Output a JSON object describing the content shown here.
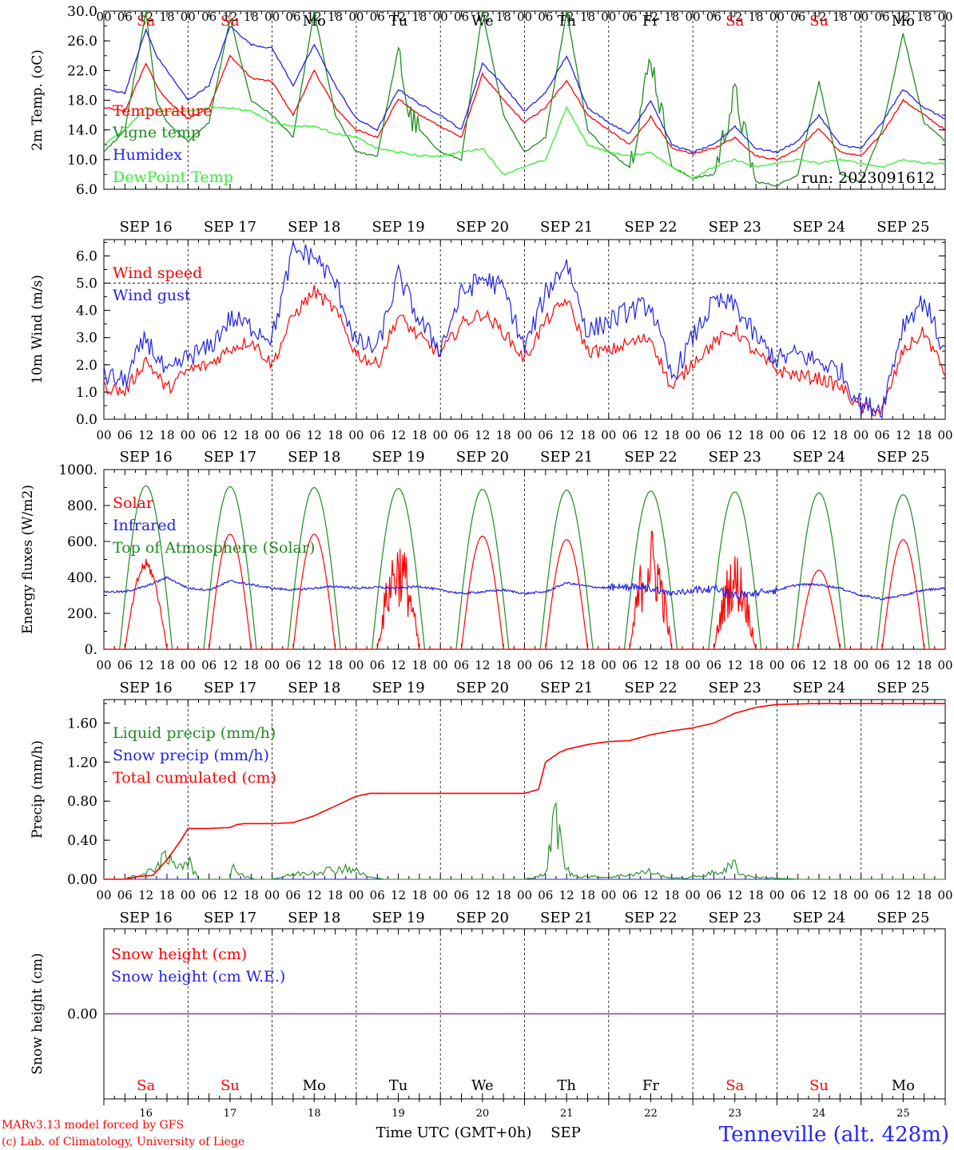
{
  "dates": [
    "SEP 16",
    "SEP 17",
    "SEP 18",
    "SEP 19",
    "SEP 20",
    "SEP 21",
    "SEP 22",
    "SEP 23",
    "SEP 24",
    "SEP 25"
  ],
  "hour_labels": [
    "00",
    "06",
    "12",
    "18"
  ],
  "hour_end": "00",
  "days": [
    {
      "abbr": "Sa",
      "weekend": true
    },
    {
      "abbr": "Su",
      "weekend": true
    },
    {
      "abbr": "Mo",
      "weekend": false
    },
    {
      "abbr": "Tu",
      "weekend": false
    },
    {
      "abbr": "We",
      "weekend": false
    },
    {
      "abbr": "Th",
      "weekend": false
    },
    {
      "abbr": "Fr",
      "weekend": false
    },
    {
      "abbr": "Sa",
      "weekend": true
    },
    {
      "abbr": "Su",
      "weekend": true
    },
    {
      "abbr": "Mo",
      "weekend": false
    }
  ],
  "day_numbers": [
    "16",
    "17",
    "18",
    "19",
    "20",
    "21",
    "22",
    "23",
    "24",
    "25"
  ],
  "colors": {
    "red": "#ff0000",
    "green": "#1f8c1f",
    "blue": "#2323e6",
    "lightgreen": "#33ee33",
    "purple": "#8b3a9c"
  },
  "footer": {
    "model": "MARv3.13 model forced by GFS",
    "credit": "(c) Lab. of Climatology, University of Liege",
    "xtitle": "Time UTC (GMT+0h)",
    "month": "SEP",
    "location": "Tenneville (alt. 428m)"
  },
  "chart_data": [
    {
      "type": "line",
      "ylabel": "2m Temp. (oC)",
      "yticks": [
        "6.0",
        "10.0",
        "14.0",
        "18.0",
        "22.0",
        "26.0",
        "30.0"
      ],
      "ylim": [
        6,
        30
      ],
      "annotation": "run: 2023091612",
      "x_unit": "hours since SEP 16 00 UTC",
      "series": [
        {
          "name": "Temperature",
          "color": "red",
          "x": [
            0,
            6,
            12,
            15,
            18,
            24,
            30,
            36,
            42,
            48,
            54,
            60,
            66,
            72,
            78,
            84,
            90,
            96,
            102,
            108,
            114,
            120,
            126,
            132,
            138,
            144,
            150,
            156,
            162,
            168,
            174,
            180,
            186,
            192,
            198,
            204,
            210,
            216,
            222,
            228,
            234,
            240
          ],
          "y": [
            17,
            16.5,
            23,
            20,
            18,
            15.5,
            17,
            24,
            21,
            20.5,
            16,
            22,
            17,
            14,
            13,
            18.2,
            16,
            14.5,
            13,
            21.5,
            18,
            15,
            17,
            20.7,
            16,
            14,
            12,
            15.8,
            11.5,
            10.8,
            11.5,
            13,
            10.5,
            10,
            11.5,
            14.2,
            11,
            10.5,
            13.5,
            18,
            16,
            14
          ]
        },
        {
          "name": "Vigne temp",
          "color": "green",
          "x": [
            0,
            6,
            12,
            15,
            18,
            24,
            30,
            36,
            42,
            48,
            54,
            60,
            66,
            72,
            78,
            84,
            87,
            90,
            96,
            102,
            108,
            114,
            120,
            126,
            132,
            138,
            144,
            150,
            156,
            162,
            168,
            174,
            180,
            186,
            192,
            198,
            204,
            210,
            216,
            222,
            228,
            234,
            240
          ],
          "y": [
            11,
            14,
            30,
            18,
            15,
            12.5,
            15,
            29,
            18,
            16,
            13,
            30,
            16,
            11,
            10.5,
            25,
            16,
            14,
            11,
            10,
            30,
            16,
            11,
            13,
            30,
            14,
            11,
            9,
            24,
            9,
            7.5,
            8,
            19,
            7,
            6.5,
            8,
            20.5,
            8,
            7,
            14,
            27,
            15,
            12.5
          ]
        },
        {
          "name": "Humidex",
          "color": "blue",
          "x": [
            0,
            6,
            12,
            15,
            18,
            24,
            30,
            36,
            42,
            48,
            54,
            60,
            66,
            72,
            78,
            84,
            90,
            96,
            102,
            108,
            114,
            120,
            126,
            132,
            138,
            144,
            150,
            156,
            162,
            168,
            174,
            180,
            186,
            192,
            198,
            204,
            210,
            216,
            222,
            228,
            234,
            240
          ],
          "y": [
            19.5,
            19,
            27.5,
            24,
            22,
            18,
            20,
            28,
            25.5,
            25,
            20,
            25.5,
            20,
            15.5,
            14,
            19.5,
            17.5,
            16,
            14,
            23,
            20,
            16.5,
            19,
            24,
            17,
            15,
            13.5,
            18,
            12,
            11,
            12,
            14.5,
            11.5,
            11,
            12.5,
            16,
            12,
            11.5,
            15,
            19.5,
            17,
            15.5
          ]
        },
        {
          "name": "DewPoint Temp",
          "color": "lightgreen",
          "x": [
            0,
            6,
            12,
            18,
            24,
            30,
            36,
            42,
            48,
            54,
            60,
            66,
            72,
            78,
            84,
            90,
            96,
            102,
            108,
            114,
            120,
            126,
            132,
            138,
            144,
            150,
            156,
            162,
            168,
            174,
            180,
            186,
            192,
            198,
            204,
            210,
            216,
            222,
            228,
            234,
            240
          ],
          "y": [
            12,
            14,
            17,
            16.5,
            16.5,
            17,
            17,
            16.5,
            15,
            14.5,
            14.5,
            13.5,
            13,
            11.5,
            11,
            10.5,
            10.5,
            11,
            11.5,
            8,
            9,
            10,
            17,
            12,
            11,
            10.5,
            11,
            9,
            7.5,
            9,
            10,
            9,
            9.5,
            10,
            9.5,
            10,
            9.5,
            9,
            10,
            9.5,
            9.5
          ]
        }
      ]
    },
    {
      "type": "line",
      "ylabel": "10m Wind (m/s)",
      "yticks": [
        "0.0",
        "1.0",
        "2.0",
        "3.0",
        "4.0",
        "5.0",
        "6.0"
      ],
      "ylim": [
        0,
        6.6
      ],
      "x_unit": "hours since SEP 16 00 UTC",
      "series": [
        {
          "name": "Wind speed",
          "color": "red",
          "x": [
            0,
            6,
            12,
            18,
            24,
            30,
            36,
            42,
            48,
            54,
            60,
            66,
            72,
            78,
            84,
            90,
            96,
            102,
            108,
            114,
            120,
            126,
            132,
            138,
            144,
            150,
            156,
            162,
            168,
            174,
            180,
            186,
            192,
            198,
            204,
            210,
            216,
            222,
            228,
            234,
            240
          ],
          "y": [
            1.2,
            1,
            2.2,
            1.1,
            1.8,
            2,
            2.6,
            2.9,
            2,
            3.8,
            4.7,
            4,
            2.4,
            2,
            3.8,
            3,
            2.4,
            3.5,
            3.9,
            3.2,
            2.2,
            3.6,
            4.4,
            2.5,
            2.5,
            2.8,
            3,
            1.1,
            2.1,
            2.8,
            3.3,
            2.4,
            1.8,
            1.6,
            1.5,
            1.2,
            0.4,
            0.3,
            2.5,
            3.2,
            1.7
          ]
        },
        {
          "name": "Wind gust",
          "color": "blue",
          "x": [
            0,
            6,
            12,
            18,
            24,
            30,
            36,
            42,
            48,
            54,
            60,
            66,
            72,
            78,
            84,
            90,
            96,
            102,
            108,
            114,
            120,
            126,
            132,
            138,
            144,
            150,
            156,
            162,
            168,
            174,
            180,
            186,
            192,
            198,
            204,
            210,
            216,
            222,
            228,
            234,
            240
          ],
          "y": [
            1.6,
            1.4,
            3,
            1.6,
            2.3,
            2.6,
            3.7,
            3.4,
            3,
            6.2,
            6,
            5,
            2.8,
            2.6,
            5.3,
            3.6,
            2.6,
            4.6,
            5.2,
            4.8,
            2.6,
            4.6,
            5.8,
            3.2,
            3.6,
            4,
            4.2,
            1.5,
            3,
            4.3,
            4.2,
            3,
            2.2,
            2.4,
            2.1,
            1.8,
            0.5,
            0.4,
            3.5,
            4.4,
            2.4
          ]
        }
      ]
    },
    {
      "type": "line",
      "ylabel": "Energy fluxes (W/m2)",
      "yticks": [
        "0.",
        "200.",
        "400.",
        "600.",
        "800.",
        "1000."
      ],
      "ylim": [
        0,
        1000
      ],
      "x_unit": "hours since SEP 16 00 UTC",
      "series": [
        {
          "name": "Solar",
          "color": "red",
          "peaks": [
            480,
            640,
            640,
            580,
            630,
            610,
            630,
            500,
            440,
            610
          ]
        },
        {
          "name": "Infrared",
          "color": "blue",
          "x": [
            0,
            6,
            12,
            18,
            24,
            30,
            36,
            42,
            48,
            54,
            60,
            66,
            72,
            78,
            84,
            90,
            96,
            102,
            108,
            114,
            120,
            126,
            132,
            138,
            144,
            150,
            156,
            162,
            168,
            174,
            180,
            186,
            192,
            198,
            204,
            210,
            216,
            222,
            228,
            234,
            240
          ],
          "y": [
            320,
            320,
            350,
            400,
            340,
            330,
            380,
            360,
            340,
            330,
            340,
            350,
            340,
            345,
            340,
            350,
            330,
            310,
            320,
            330,
            310,
            320,
            370,
            350,
            340,
            350,
            340,
            310,
            330,
            340,
            300,
            310,
            330,
            360,
            360,
            340,
            300,
            280,
            300,
            330,
            340
          ]
        },
        {
          "name": "Top of Atmosphere (Solar)",
          "color": "green",
          "peaks": [
            910,
            905,
            900,
            895,
            890,
            885,
            880,
            875,
            870,
            860
          ]
        }
      ]
    },
    {
      "type": "line",
      "ylabel": "Precip (mm/h)",
      "yticks": [
        "0.00",
        "0.40",
        "0.80",
        "1.20",
        "1.60"
      ],
      "ylim": [
        0,
        1.84
      ],
      "x_unit": "hours since SEP 16 00 UTC",
      "series": [
        {
          "name": "Liquid precip (mm/h)",
          "color": "green",
          "x": [
            0,
            6,
            8,
            12,
            14,
            16,
            18,
            20,
            22,
            24,
            27,
            30,
            36,
            37,
            39,
            41,
            43,
            48,
            54,
            60,
            66,
            70,
            72,
            76,
            80,
            96,
            120,
            126,
            127,
            129,
            131,
            133,
            136,
            144,
            150,
            156,
            160,
            166,
            172,
            176,
            180,
            182,
            186,
            192,
            198,
            240
          ],
          "y": [
            0,
            0,
            0.03,
            0.05,
            0.12,
            0.18,
            0.2,
            0.15,
            0.18,
            0.2,
            0,
            0,
            0,
            0.15,
            0.05,
            0.03,
            0,
            0,
            0.05,
            0.08,
            0.1,
            0.12,
            0.08,
            0.02,
            0,
            0,
            0,
            0.05,
            0.25,
            0.7,
            0.2,
            0.05,
            0.03,
            0.02,
            0.05,
            0.08,
            0.02,
            0.01,
            0.05,
            0.08,
            0.15,
            0.05,
            0.02,
            0.01,
            0,
            0
          ]
        },
        {
          "name": "Snow precip (mm/h)",
          "color": "blue",
          "x": [
            0,
            240
          ],
          "y": [
            0,
            0
          ]
        },
        {
          "name": "Total cumulated (cm)",
          "color": "red",
          "x": [
            0,
            6,
            10,
            14,
            18,
            22,
            24,
            30,
            36,
            38,
            40,
            48,
            54,
            60,
            66,
            72,
            76,
            78,
            96,
            120,
            124,
            126,
            128,
            130,
            132,
            138,
            144,
            150,
            156,
            162,
            168,
            174,
            180,
            186,
            192,
            204,
            216,
            240
          ],
          "y": [
            0,
            0,
            0.03,
            0.04,
            0.2,
            0.4,
            0.52,
            0.52,
            0.53,
            0.56,
            0.57,
            0.57,
            0.58,
            0.65,
            0.75,
            0.85,
            0.88,
            0.88,
            0.88,
            0.88,
            0.92,
            1.2,
            1.25,
            1.3,
            1.33,
            1.38,
            1.41,
            1.42,
            1.48,
            1.52,
            1.55,
            1.6,
            1.7,
            1.76,
            1.79,
            1.8,
            1.8,
            1.8
          ]
        }
      ]
    },
    {
      "type": "line",
      "ylabel": "Snow height (cm)",
      "yticks": [
        "0.00"
      ],
      "ylim": [
        -1,
        1
      ],
      "x_unit": "hours since SEP 16 00 UTC",
      "series": [
        {
          "name": "Snow height (cm)",
          "color": "red",
          "x": [
            0,
            240
          ],
          "y": [
            0,
            0
          ]
        },
        {
          "name": "Snow height (cm W.E.)",
          "color": "blue",
          "x": [
            0,
            240
          ],
          "y": [
            0,
            0
          ]
        }
      ]
    }
  ]
}
